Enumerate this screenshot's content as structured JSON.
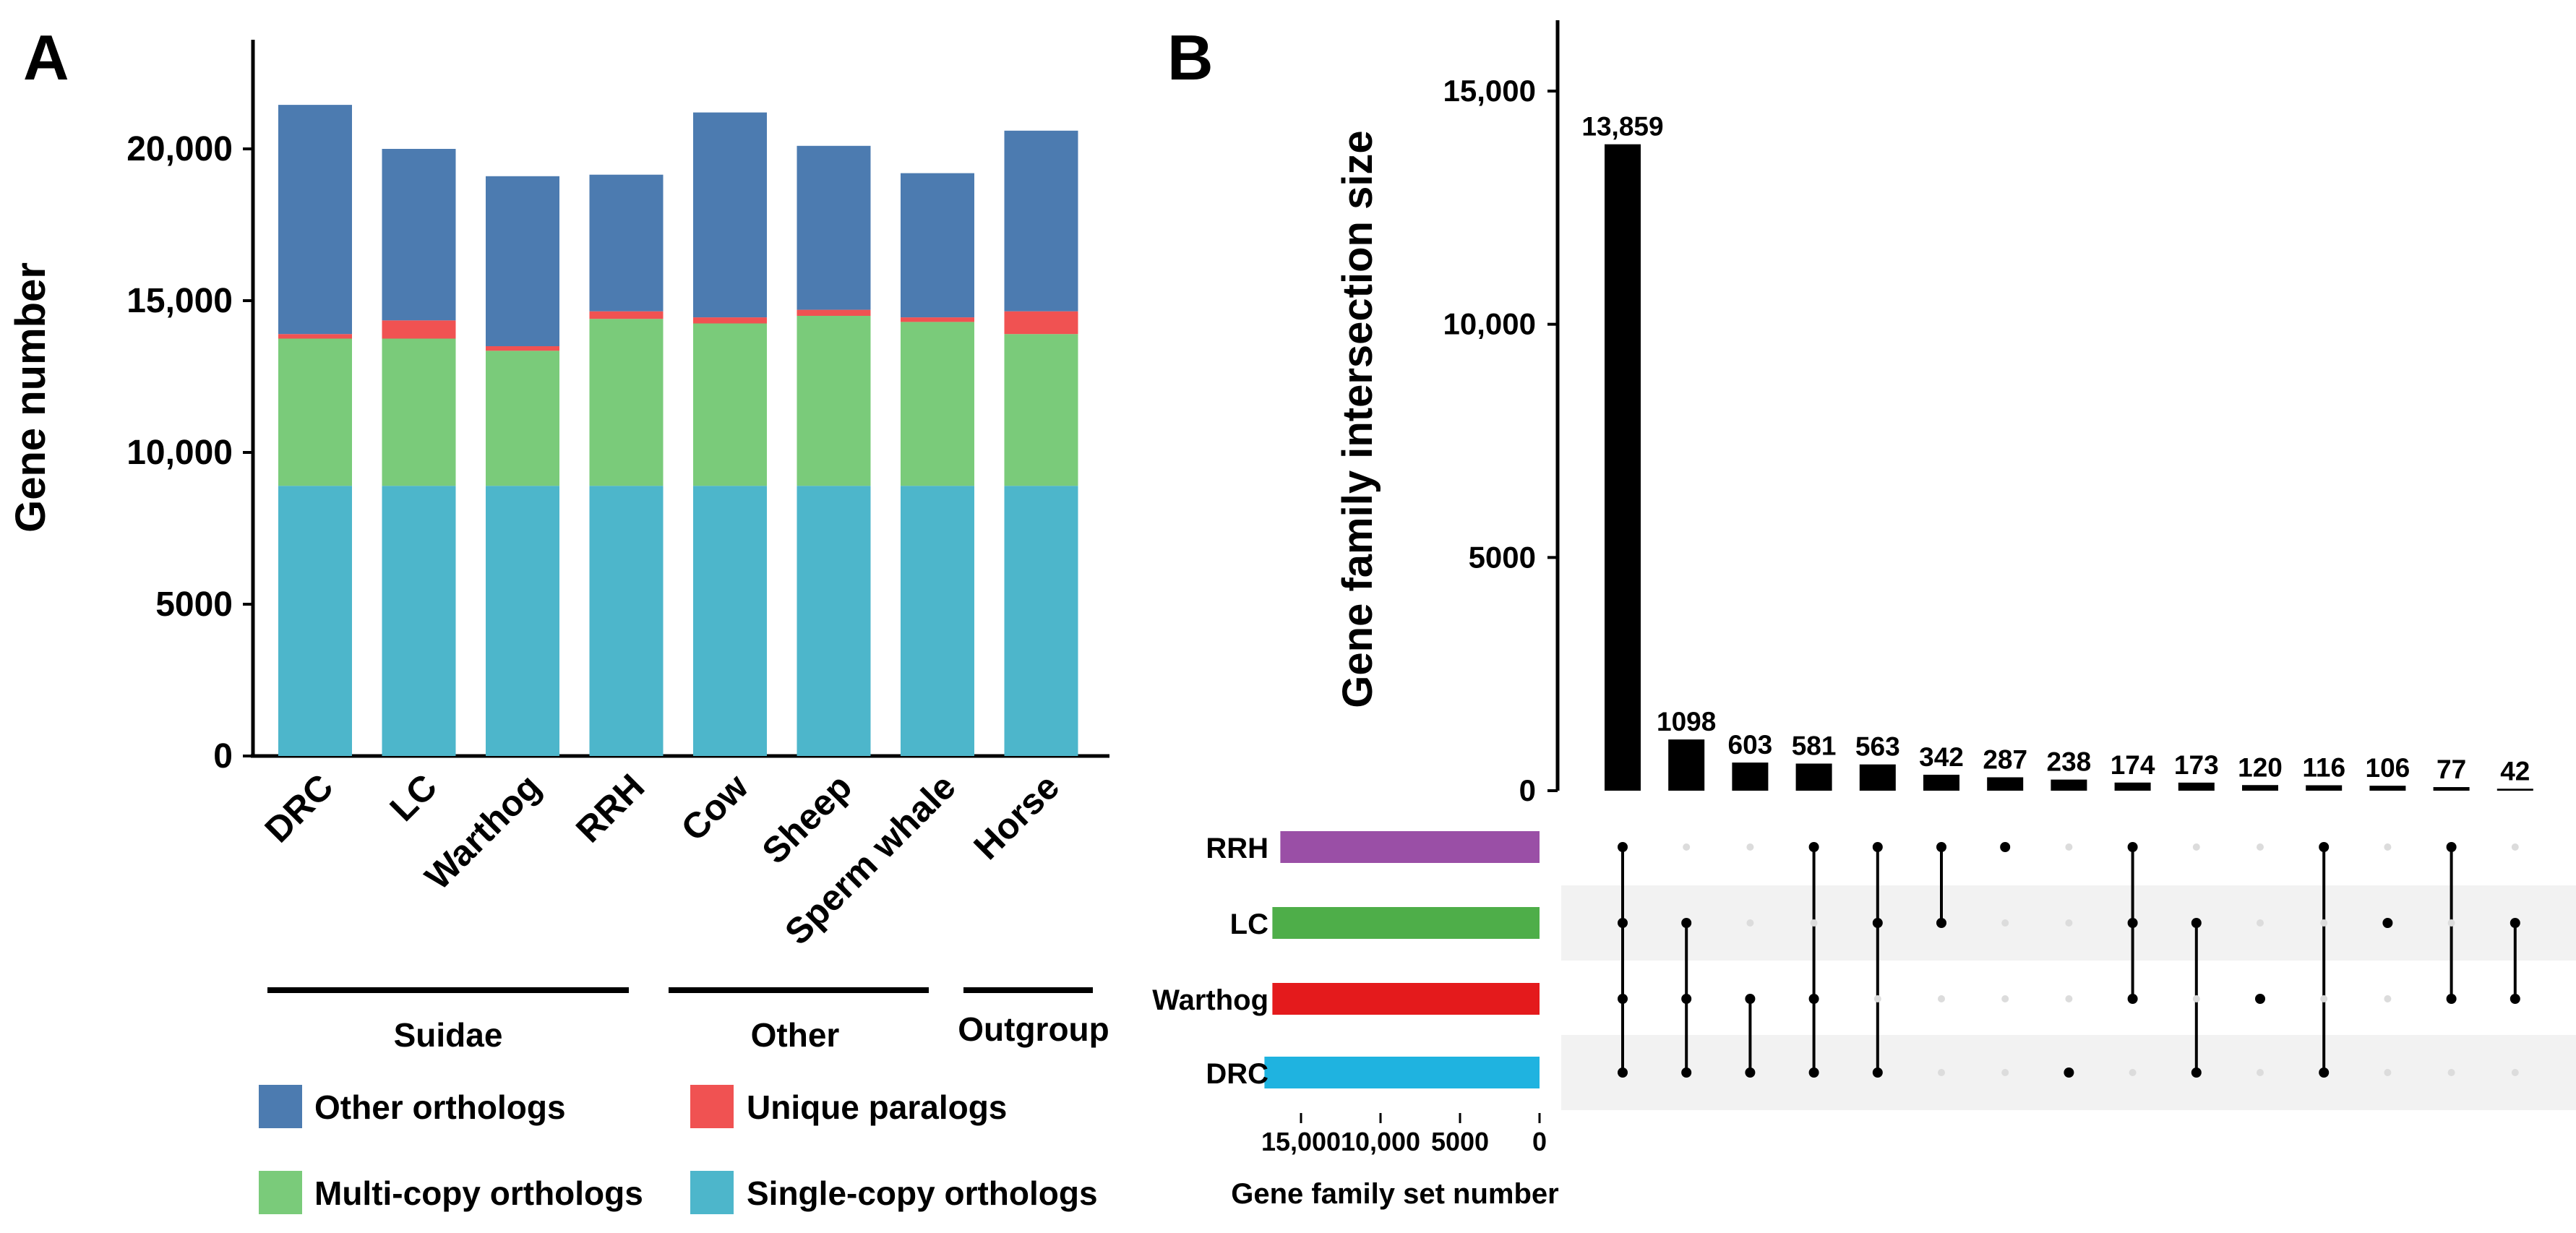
{
  "panel_a": {
    "label": "A",
    "group_names": [
      "Suidae",
      "Other",
      "Outgroup"
    ],
    "legend": [
      "Other orthologs",
      "Unique paralogs",
      "Multi-copy orthologs",
      "Single-copy orthologs"
    ]
  },
  "panel_b": {
    "label": "B",
    "colors": {
      "RRH": "#9a4fa6",
      "LC": "#4eae49",
      "Warthog": "#e41a1c",
      "DRC": "#1fb3e0"
    }
  },
  "chart_data": [
    {
      "type": "bar",
      "stacked": true,
      "title": "",
      "xlabel": "",
      "ylabel": "Gene number",
      "ylim": [
        0,
        23000
      ],
      "yticks": [
        0,
        5000,
        10000,
        15000,
        20000
      ],
      "ytick_labels": [
        "0",
        "5000",
        "10,000",
        "15,000",
        "20,000"
      ],
      "categories": [
        "DRC",
        "LC",
        "Warthog",
        "RRH",
        "Cow",
        "Sheep",
        "Sperm whale",
        "Horse"
      ],
      "series": [
        {
          "name": "Single-copy orthologs",
          "color": "#4db6cb",
          "values": [
            8900,
            8900,
            8900,
            8900,
            8900,
            8900,
            8900,
            8900
          ]
        },
        {
          "name": "Multi-copy orthologs",
          "color": "#7acb7a",
          "values": [
            4850,
            4850,
            4450,
            5500,
            5350,
            5600,
            5400,
            5000
          ]
        },
        {
          "name": "Unique paralogs",
          "color": "#f05252",
          "values": [
            150,
            600,
            150,
            250,
            200,
            200,
            150,
            750
          ]
        },
        {
          "name": "Other orthologs",
          "color": "#4c7bb0",
          "values": [
            7550,
            5650,
            5600,
            4500,
            6750,
            5400,
            4750,
            5950
          ]
        }
      ],
      "groups": [
        {
          "name": "Suidae",
          "categories": [
            "DRC",
            "LC",
            "Warthog",
            "RRH"
          ]
        },
        {
          "name": "Other",
          "categories": [
            "Cow",
            "Sheep",
            "Sperm whale"
          ]
        },
        {
          "name": "Outgroup",
          "categories": [
            "Horse"
          ]
        }
      ],
      "legend": "bottom"
    },
    {
      "type": "bar",
      "title": "",
      "xlabel": "",
      "ylabel": "Gene  family intersection size",
      "ylim": [
        0,
        16500
      ],
      "yticks": [
        0,
        5000,
        10000,
        15000
      ],
      "ytick_labels": [
        "0",
        "5000",
        "10,000",
        "15,000"
      ],
      "values": [
        13859,
        1098,
        603,
        581,
        563,
        342,
        287,
        238,
        174,
        173,
        120,
        116,
        106,
        77,
        42
      ],
      "value_labels": [
        "13,859",
        "1098",
        "603",
        "581",
        "563",
        "342",
        "287",
        "238",
        "174",
        "173",
        "120",
        "116",
        "106",
        "77",
        "42"
      ],
      "sets": [
        "RRH",
        "LC",
        "Warthog",
        "DRC"
      ],
      "intersections": [
        [
          "RRH",
          "LC",
          "Warthog",
          "DRC"
        ],
        [
          "LC",
          "Warthog",
          "DRC"
        ],
        [
          "Warthog",
          "DRC"
        ],
        [
          "RRH",
          "Warthog",
          "DRC"
        ],
        [
          "RRH",
          "LC",
          "DRC"
        ],
        [
          "RRH",
          "LC"
        ],
        [
          "RRH"
        ],
        [
          "DRC"
        ],
        [
          "RRH",
          "LC",
          "Warthog"
        ],
        [
          "LC",
          "DRC"
        ],
        [
          "Warthog"
        ],
        [
          "RRH",
          "DRC"
        ],
        [
          "LC"
        ],
        [
          "RRH",
          "Warthog"
        ],
        [
          "LC",
          "Warthog"
        ]
      ],
      "set_sizes": {
        "xlabel": "Gene family set number",
        "xticks": [
          15000,
          10000,
          5000,
          0
        ],
        "xtick_labels": [
          "15,000",
          "10,000",
          "5000",
          "0"
        ],
        "names": [
          "RRH",
          "LC",
          "Warthog",
          "DRC"
        ],
        "values": [
          16300,
          16800,
          16800,
          17300
        ]
      }
    }
  ]
}
